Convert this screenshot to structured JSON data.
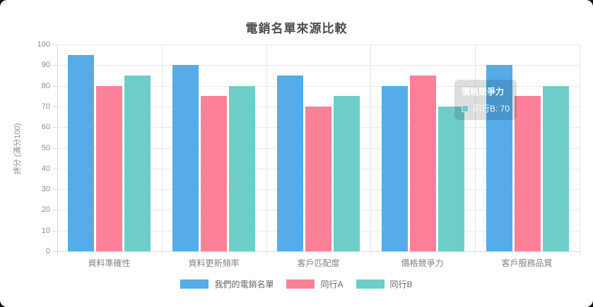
{
  "page": {
    "background_color": "#111111",
    "card_color": "#ffffff"
  },
  "chart_data": {
    "type": "bar",
    "title": "電銷名單來源比較",
    "ylabel": "評分 (滿分100)",
    "xlabel": "",
    "categories": [
      "資料準確性",
      "資料更新頻率",
      "客戶匹配度",
      "價格競爭力",
      "客戶服務品質"
    ],
    "series": [
      {
        "name": "我們的電銷名單",
        "color": "#55ACE8",
        "values": [
          95,
          90,
          85,
          80,
          90
        ]
      },
      {
        "name": "同行A",
        "color": "#FC8198",
        "values": [
          80,
          75,
          70,
          85,
          75
        ]
      },
      {
        "name": "同行B",
        "color": "#6FCDC9",
        "values": [
          85,
          80,
          75,
          70,
          80
        ]
      }
    ],
    "ylim": [
      0,
      100
    ],
    "ytick_step": 10,
    "grid": true,
    "legend_position": "bottom"
  },
  "tooltip": {
    "title": "價格競爭力",
    "series": "同行B",
    "value": 70,
    "label": "同行B: 70",
    "swatch_color": "#6FCDC9"
  }
}
